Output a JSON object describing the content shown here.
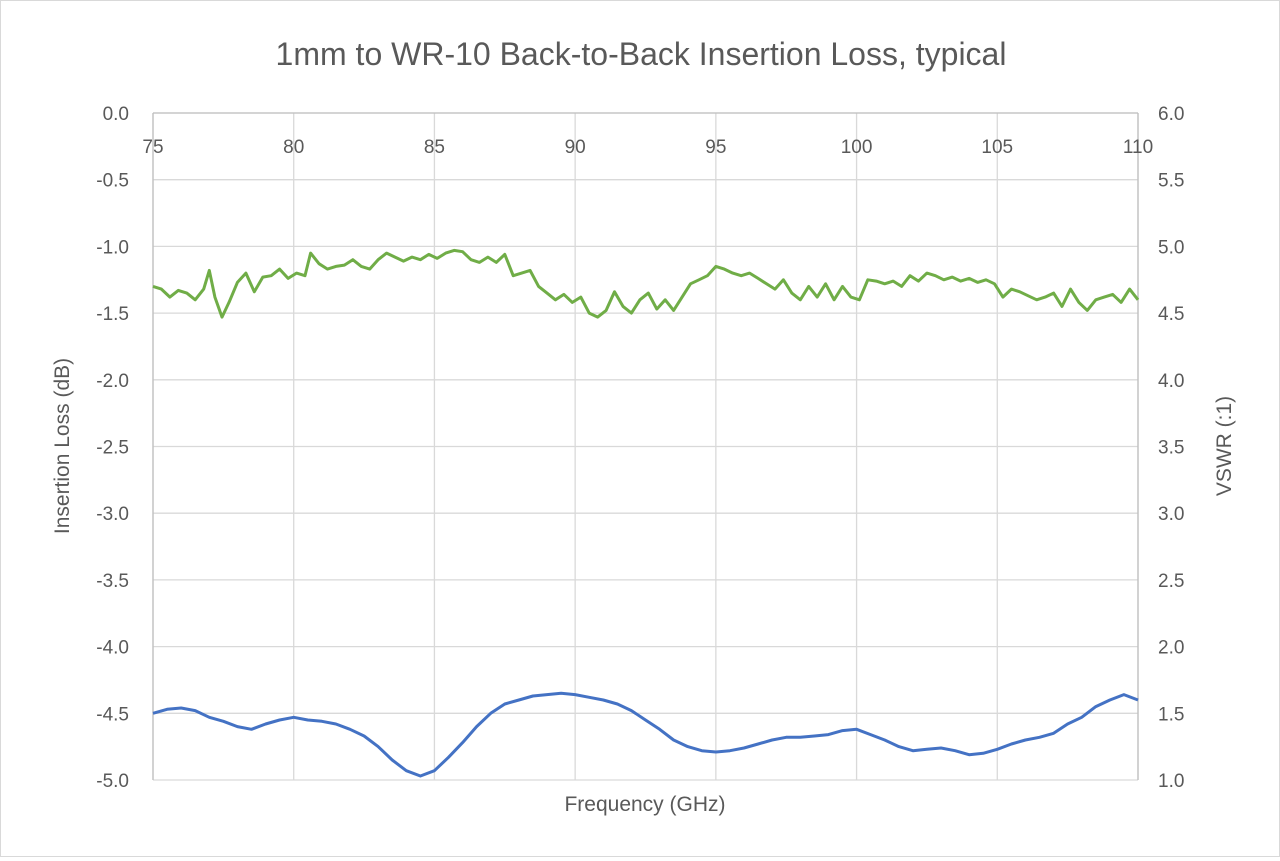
{
  "chart_data": {
    "type": "line",
    "title": "1mm to WR-10 Back-to-Back Insertion Loss, typical",
    "xlabel": "Frequency (GHz)",
    "ylabel": "Insertion Loss (dB)",
    "y2label": "VSWR (:1)",
    "xlim": [
      75,
      110
    ],
    "ylim": [
      -5.0,
      0.0
    ],
    "y2lim": [
      1.0,
      6.0
    ],
    "x_ticks": [
      "75",
      "80",
      "85",
      "90",
      "95",
      "100",
      "105",
      "110"
    ],
    "y_ticks": [
      "0.0",
      "-0.5",
      "-1.0",
      "-1.5",
      "-2.0",
      "-2.5",
      "-3.0",
      "-3.5",
      "-4.0",
      "-4.5",
      "-5.0"
    ],
    "y2_ticks": [
      "6.0",
      "5.5",
      "5.0",
      "4.5",
      "4.0",
      "3.5",
      "3.0",
      "2.5",
      "2.0",
      "1.5",
      "1.0"
    ],
    "x_axis_position": "top",
    "grid": true,
    "legend": "none",
    "series": [
      {
        "axis": "y2",
        "color": "#70ad47",
        "points": [
          [
            75.0,
            4.7
          ],
          [
            75.3,
            4.68
          ],
          [
            75.6,
            4.62
          ],
          [
            75.9,
            4.67
          ],
          [
            76.2,
            4.65
          ],
          [
            76.5,
            4.6
          ],
          [
            76.8,
            4.68
          ],
          [
            77.0,
            4.82
          ],
          [
            77.2,
            4.62
          ],
          [
            77.45,
            4.47
          ],
          [
            77.7,
            4.58
          ],
          [
            78.0,
            4.73
          ],
          [
            78.3,
            4.8
          ],
          [
            78.6,
            4.66
          ],
          [
            78.9,
            4.77
          ],
          [
            79.2,
            4.78
          ],
          [
            79.5,
            4.83
          ],
          [
            79.8,
            4.76
          ],
          [
            80.1,
            4.8
          ],
          [
            80.4,
            4.78
          ],
          [
            80.6,
            4.95
          ],
          [
            80.9,
            4.87
          ],
          [
            81.2,
            4.83
          ],
          [
            81.5,
            4.85
          ],
          [
            81.8,
            4.86
          ],
          [
            82.1,
            4.9
          ],
          [
            82.4,
            4.85
          ],
          [
            82.7,
            4.83
          ],
          [
            83.0,
            4.9
          ],
          [
            83.3,
            4.95
          ],
          [
            83.6,
            4.92
          ],
          [
            83.9,
            4.89
          ],
          [
            84.2,
            4.92
          ],
          [
            84.5,
            4.9
          ],
          [
            84.8,
            4.94
          ],
          [
            85.1,
            4.91
          ],
          [
            85.4,
            4.95
          ],
          [
            85.7,
            4.97
          ],
          [
            86.0,
            4.96
          ],
          [
            86.3,
            4.9
          ],
          [
            86.6,
            4.88
          ],
          [
            86.9,
            4.92
          ],
          [
            87.2,
            4.88
          ],
          [
            87.5,
            4.94
          ],
          [
            87.8,
            4.78
          ],
          [
            88.1,
            4.8
          ],
          [
            88.4,
            4.82
          ],
          [
            88.7,
            4.7
          ],
          [
            89.0,
            4.65
          ],
          [
            89.3,
            4.6
          ],
          [
            89.6,
            4.64
          ],
          [
            89.9,
            4.58
          ],
          [
            90.2,
            4.62
          ],
          [
            90.5,
            4.5
          ],
          [
            90.8,
            4.47
          ],
          [
            91.1,
            4.52
          ],
          [
            91.4,
            4.66
          ],
          [
            91.7,
            4.55
          ],
          [
            92.0,
            4.5
          ],
          [
            92.3,
            4.6
          ],
          [
            92.6,
            4.65
          ],
          [
            92.9,
            4.53
          ],
          [
            93.2,
            4.6
          ],
          [
            93.5,
            4.52
          ],
          [
            93.8,
            4.62
          ],
          [
            94.1,
            4.72
          ],
          [
            94.4,
            4.75
          ],
          [
            94.7,
            4.78
          ],
          [
            95.0,
            4.85
          ],
          [
            95.3,
            4.83
          ],
          [
            95.6,
            4.8
          ],
          [
            95.9,
            4.78
          ],
          [
            96.2,
            4.8
          ],
          [
            96.5,
            4.76
          ],
          [
            96.8,
            4.72
          ],
          [
            97.1,
            4.68
          ],
          [
            97.4,
            4.75
          ],
          [
            97.7,
            4.65
          ],
          [
            98.0,
            4.6
          ],
          [
            98.3,
            4.7
          ],
          [
            98.6,
            4.62
          ],
          [
            98.9,
            4.72
          ],
          [
            99.2,
            4.6
          ],
          [
            99.5,
            4.7
          ],
          [
            99.8,
            4.62
          ],
          [
            100.1,
            4.6
          ],
          [
            100.4,
            4.75
          ],
          [
            100.7,
            4.74
          ],
          [
            101.0,
            4.72
          ],
          [
            101.3,
            4.74
          ],
          [
            101.6,
            4.7
          ],
          [
            101.9,
            4.78
          ],
          [
            102.2,
            4.74
          ],
          [
            102.5,
            4.8
          ],
          [
            102.8,
            4.78
          ],
          [
            103.1,
            4.75
          ],
          [
            103.4,
            4.77
          ],
          [
            103.7,
            4.74
          ],
          [
            104.0,
            4.76
          ],
          [
            104.3,
            4.73
          ],
          [
            104.6,
            4.75
          ],
          [
            104.9,
            4.72
          ],
          [
            105.2,
            4.62
          ],
          [
            105.5,
            4.68
          ],
          [
            105.8,
            4.66
          ],
          [
            106.1,
            4.63
          ],
          [
            106.4,
            4.6
          ],
          [
            106.7,
            4.62
          ],
          [
            107.0,
            4.65
          ],
          [
            107.3,
            4.55
          ],
          [
            107.6,
            4.68
          ],
          [
            107.9,
            4.58
          ],
          [
            108.2,
            4.52
          ],
          [
            108.5,
            4.6
          ],
          [
            108.8,
            4.62
          ],
          [
            109.1,
            4.64
          ],
          [
            109.4,
            4.58
          ],
          [
            109.7,
            4.68
          ],
          [
            110.0,
            4.6
          ]
        ]
      },
      {
        "axis": "y",
        "color": "#4472c4",
        "points": [
          [
            75.0,
            -4.5
          ],
          [
            75.5,
            -4.47
          ],
          [
            76.0,
            -4.46
          ],
          [
            76.5,
            -4.48
          ],
          [
            77.0,
            -4.53
          ],
          [
            77.5,
            -4.56
          ],
          [
            78.0,
            -4.6
          ],
          [
            78.5,
            -4.62
          ],
          [
            79.0,
            -4.58
          ],
          [
            79.5,
            -4.55
          ],
          [
            80.0,
            -4.53
          ],
          [
            80.5,
            -4.55
          ],
          [
            81.0,
            -4.56
          ],
          [
            81.5,
            -4.58
          ],
          [
            82.0,
            -4.62
          ],
          [
            82.5,
            -4.67
          ],
          [
            83.0,
            -4.75
          ],
          [
            83.5,
            -4.85
          ],
          [
            84.0,
            -4.93
          ],
          [
            84.5,
            -4.97
          ],
          [
            85.0,
            -4.93
          ],
          [
            85.5,
            -4.83
          ],
          [
            86.0,
            -4.72
          ],
          [
            86.5,
            -4.6
          ],
          [
            87.0,
            -4.5
          ],
          [
            87.5,
            -4.43
          ],
          [
            88.0,
            -4.4
          ],
          [
            88.5,
            -4.37
          ],
          [
            89.0,
            -4.36
          ],
          [
            89.5,
            -4.35
          ],
          [
            90.0,
            -4.36
          ],
          [
            90.5,
            -4.38
          ],
          [
            91.0,
            -4.4
          ],
          [
            91.5,
            -4.43
          ],
          [
            92.0,
            -4.48
          ],
          [
            92.5,
            -4.55
          ],
          [
            93.0,
            -4.62
          ],
          [
            93.5,
            -4.7
          ],
          [
            94.0,
            -4.75
          ],
          [
            94.5,
            -4.78
          ],
          [
            95.0,
            -4.79
          ],
          [
            95.5,
            -4.78
          ],
          [
            96.0,
            -4.76
          ],
          [
            96.5,
            -4.73
          ],
          [
            97.0,
            -4.7
          ],
          [
            97.5,
            -4.68
          ],
          [
            98.0,
            -4.68
          ],
          [
            98.5,
            -4.67
          ],
          [
            99.0,
            -4.66
          ],
          [
            99.5,
            -4.63
          ],
          [
            100.0,
            -4.62
          ],
          [
            100.5,
            -4.66
          ],
          [
            101.0,
            -4.7
          ],
          [
            101.5,
            -4.75
          ],
          [
            102.0,
            -4.78
          ],
          [
            102.5,
            -4.77
          ],
          [
            103.0,
            -4.76
          ],
          [
            103.5,
            -4.78
          ],
          [
            104.0,
            -4.81
          ],
          [
            104.5,
            -4.8
          ],
          [
            105.0,
            -4.77
          ],
          [
            105.5,
            -4.73
          ],
          [
            106.0,
            -4.7
          ],
          [
            106.5,
            -4.68
          ],
          [
            107.0,
            -4.65
          ],
          [
            107.5,
            -4.58
          ],
          [
            108.0,
            -4.53
          ],
          [
            108.5,
            -4.45
          ],
          [
            109.0,
            -4.4
          ],
          [
            109.5,
            -4.36
          ],
          [
            110.0,
            -4.4
          ]
        ]
      }
    ]
  }
}
